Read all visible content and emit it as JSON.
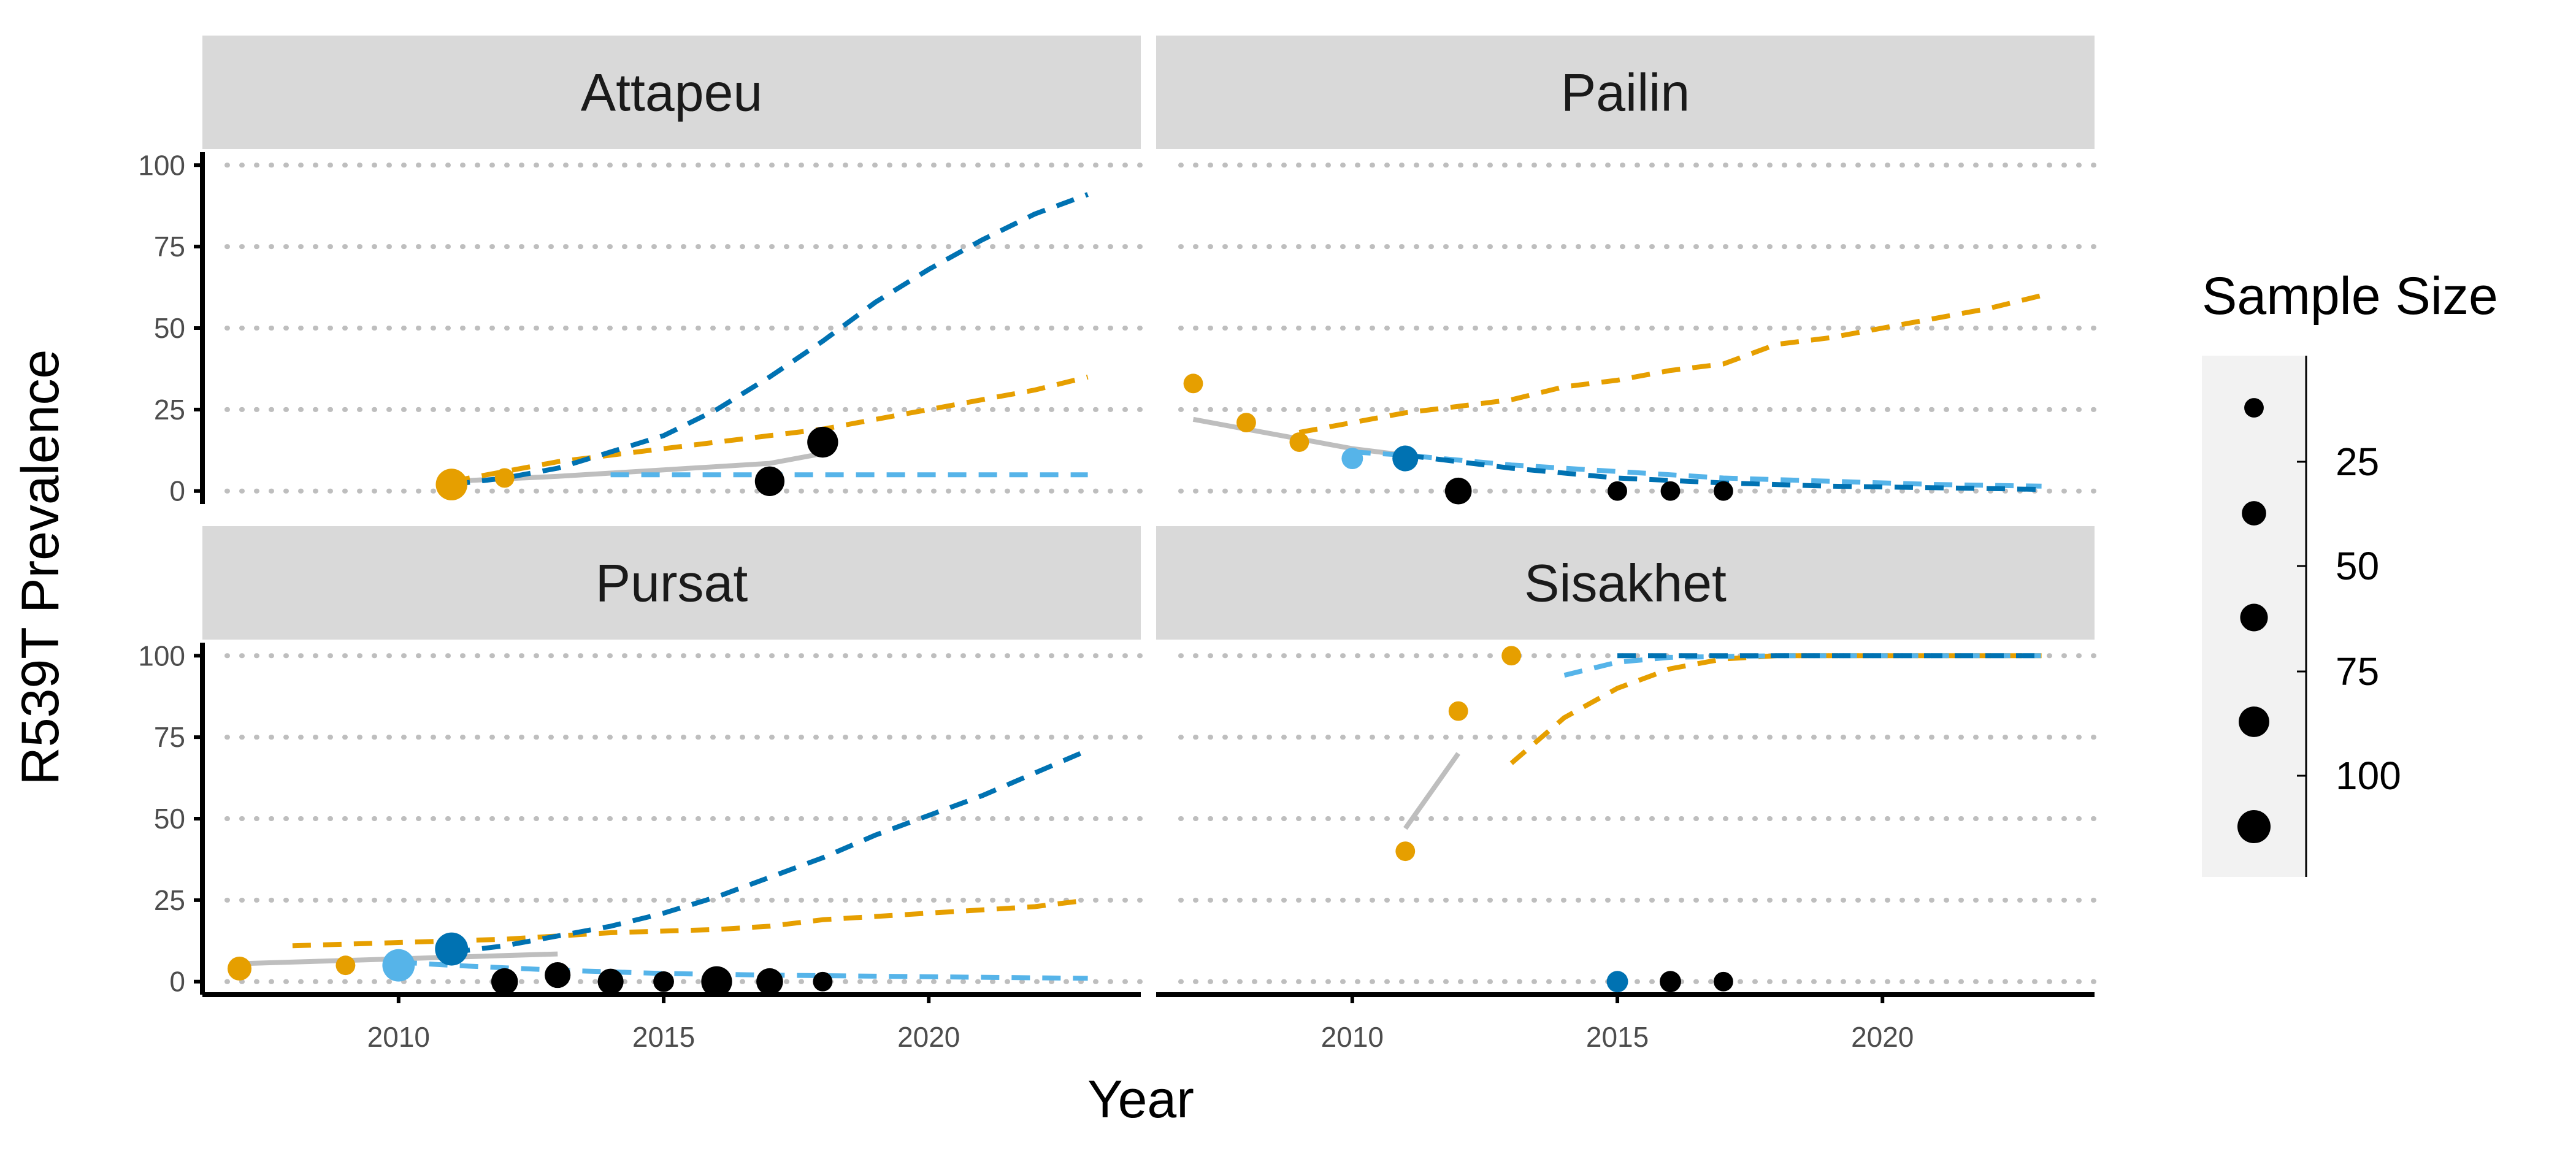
{
  "chart_data": {
    "type": "scatter",
    "ylabel": "R539T Prevalence",
    "xlabel": "Year",
    "xlim": [
      2006.3,
      2024
    ],
    "ylim": [
      -4,
      104
    ],
    "x_ticks": [
      2010,
      2015,
      2020
    ],
    "y_ticks": [
      0,
      25,
      50,
      75,
      100
    ],
    "grid": "horizontal dotted",
    "legend": {
      "title": "Sample Size",
      "position": "right",
      "entries": [
        {
          "label": "25",
          "size": 25
        },
        {
          "label": "50",
          "size": 50
        },
        {
          "label": "75",
          "size": 75
        },
        {
          "label": "100",
          "size": 100
        }
      ]
    },
    "colors": {
      "orange": "#E69F00",
      "sky_blue": "#56B4E9",
      "dark_blue": "#0072B2",
      "black": "#000000",
      "gray": "#BEBEBE"
    },
    "panels": [
      {
        "name": "Attapeu",
        "points": [
          {
            "x": 2011,
            "y": 2,
            "size": 105,
            "color": "orange"
          },
          {
            "x": 2012,
            "y": 4,
            "size": 40,
            "color": "orange"
          },
          {
            "x": 2017,
            "y": 3,
            "size": 92,
            "color": "black"
          },
          {
            "x": 2018,
            "y": 15,
            "size": 100,
            "color": "black"
          }
        ],
        "lines": [
          {
            "color": "gray",
            "dash": "solid",
            "points": [
              [
                2011,
                3
              ],
              [
                2013,
                4.5
              ],
              [
                2015,
                6.5
              ],
              [
                2017,
                8.5
              ],
              [
                2018,
                11.5
              ]
            ]
          },
          {
            "color": "orange",
            "dash": "dashed",
            "points": [
              [
                2011,
                3
              ],
              [
                2012,
                6
              ],
              [
                2013,
                9
              ],
              [
                2014,
                11
              ],
              [
                2015,
                13
              ],
              [
                2016,
                15
              ],
              [
                2017,
                17
              ],
              [
                2018,
                19
              ],
              [
                2019,
                22
              ],
              [
                2020,
                25
              ],
              [
                2021,
                28
              ],
              [
                2022,
                31
              ],
              [
                2023,
                35
              ]
            ]
          },
          {
            "color": "dark_blue",
            "dash": "dashed",
            "points": [
              [
                2011,
                2
              ],
              [
                2012,
                4
              ],
              [
                2013,
                7
              ],
              [
                2014,
                12
              ],
              [
                2015,
                17
              ],
              [
                2016,
                25
              ],
              [
                2017,
                35
              ],
              [
                2018,
                46
              ],
              [
                2019,
                58
              ],
              [
                2020,
                68
              ],
              [
                2021,
                77
              ],
              [
                2022,
                85
              ],
              [
                2023,
                91
              ]
            ]
          },
          {
            "color": "sky_blue",
            "dash": "dashed",
            "points": [
              [
                2014,
                5
              ],
              [
                2017,
                5
              ],
              [
                2020,
                5
              ],
              [
                2023,
                5
              ]
            ]
          }
        ]
      },
      {
        "name": "Pailin",
        "points": [
          {
            "x": 2007,
            "y": 33,
            "size": 40,
            "color": "orange"
          },
          {
            "x": 2008,
            "y": 21,
            "size": 40,
            "color": "orange"
          },
          {
            "x": 2009,
            "y": 15,
            "size": 40,
            "color": "orange"
          },
          {
            "x": 2010,
            "y": 10,
            "size": 48,
            "color": "sky_blue"
          },
          {
            "x": 2011,
            "y": 10,
            "size": 70,
            "color": "dark_blue"
          },
          {
            "x": 2012,
            "y": 0,
            "size": 75,
            "color": "black"
          },
          {
            "x": 2015,
            "y": 0,
            "size": 40,
            "color": "black"
          },
          {
            "x": 2016,
            "y": 0,
            "size": 40,
            "color": "black"
          },
          {
            "x": 2017,
            "y": 0,
            "size": 40,
            "color": "black"
          }
        ],
        "lines": [
          {
            "color": "gray",
            "dash": "solid",
            "points": [
              [
                2007,
                22
              ],
              [
                2008,
                19
              ],
              [
                2009,
                16
              ],
              [
                2010,
                13
              ],
              [
                2011,
                11
              ]
            ]
          },
          {
            "color": "orange",
            "dash": "dashed",
            "points": [
              [
                2009,
                18
              ],
              [
                2010,
                21
              ],
              [
                2011,
                24
              ],
              [
                2012,
                26
              ],
              [
                2013,
                28
              ],
              [
                2014,
                32
              ],
              [
                2015,
                34
              ],
              [
                2016,
                37
              ],
              [
                2017,
                39
              ],
              [
                2018,
                45
              ],
              [
                2019,
                47
              ],
              [
                2020,
                50
              ],
              [
                2021,
                53
              ],
              [
                2022,
                56
              ],
              [
                2023,
                60
              ]
            ]
          },
          {
            "color": "sky_blue",
            "dash": "dashed",
            "points": [
              [
                2010,
                12
              ],
              [
                2011,
                11
              ],
              [
                2013,
                8
              ],
              [
                2015,
                6
              ],
              [
                2017,
                4
              ],
              [
                2019,
                3
              ],
              [
                2021,
                2
              ],
              [
                2023,
                1.5
              ]
            ]
          },
          {
            "color": "dark_blue",
            "dash": "dashed",
            "points": [
              [
                2011,
                11
              ],
              [
                2013,
                7
              ],
              [
                2015,
                4
              ],
              [
                2017,
                2.5
              ],
              [
                2019,
                1.5
              ],
              [
                2021,
                1
              ],
              [
                2023,
                0.5
              ]
            ]
          }
        ]
      },
      {
        "name": "Pursat",
        "points": [
          {
            "x": 2007,
            "y": 4,
            "size": 60,
            "color": "orange"
          },
          {
            "x": 2009,
            "y": 5,
            "size": 40,
            "color": "orange"
          },
          {
            "x": 2010,
            "y": 5,
            "size": 110,
            "color": "sky_blue"
          },
          {
            "x": 2011,
            "y": 10,
            "size": 115,
            "color": "dark_blue"
          },
          {
            "x": 2012,
            "y": 0,
            "size": 75,
            "color": "black"
          },
          {
            "x": 2013,
            "y": 2,
            "size": 70,
            "color": "black"
          },
          {
            "x": 2014,
            "y": 0,
            "size": 70,
            "color": "black"
          },
          {
            "x": 2015,
            "y": 0,
            "size": 45,
            "color": "black"
          },
          {
            "x": 2016,
            "y": 0,
            "size": 100,
            "color": "black"
          },
          {
            "x": 2017,
            "y": 0,
            "size": 75,
            "color": "black"
          },
          {
            "x": 2018,
            "y": 0,
            "size": 40,
            "color": "black"
          }
        ],
        "lines": [
          {
            "color": "gray",
            "dash": "solid",
            "points": [
              [
                2007,
                5.5
              ],
              [
                2009,
                6.5
              ],
              [
                2011,
                7.5
              ],
              [
                2013,
                8.5
              ]
            ]
          },
          {
            "color": "orange",
            "dash": "dashed",
            "points": [
              [
                2008,
                11
              ],
              [
                2010,
                12
              ],
              [
                2012,
                13
              ],
              [
                2014,
                15
              ],
              [
                2016,
                16
              ],
              [
                2017,
                17
              ],
              [
                2018,
                19
              ],
              [
                2020,
                21
              ],
              [
                2022,
                23
              ],
              [
                2023,
                25
              ]
            ]
          },
          {
            "color": "dark_blue",
            "dash": "dashed",
            "points": [
              [
                2011,
                9
              ],
              [
                2012,
                11
              ],
              [
                2013,
                14
              ],
              [
                2014,
                17
              ],
              [
                2015,
                21
              ],
              [
                2016,
                26
              ],
              [
                2017,
                32
              ],
              [
                2018,
                38
              ],
              [
                2019,
                45
              ],
              [
                2020,
                51
              ],
              [
                2021,
                57
              ],
              [
                2022,
                64
              ],
              [
                2023,
                71
              ]
            ]
          },
          {
            "color": "sky_blue",
            "dash": "dashed",
            "points": [
              [
                2010,
                6
              ],
              [
                2011,
                5
              ],
              [
                2013,
                3.5
              ],
              [
                2015,
                2.5
              ],
              [
                2017,
                2
              ],
              [
                2020,
                1.5
              ],
              [
                2023,
                1
              ]
            ]
          }
        ]
      },
      {
        "name": "Sisakhet",
        "points": [
          {
            "x": 2011,
            "y": 40,
            "size": 40,
            "color": "orange"
          },
          {
            "x": 2012,
            "y": 83,
            "size": 40,
            "color": "orange"
          },
          {
            "x": 2013,
            "y": 100,
            "size": 40,
            "color": "orange"
          },
          {
            "x": 2015,
            "y": 0,
            "size": 48,
            "color": "dark_blue"
          },
          {
            "x": 2016,
            "y": 0,
            "size": 48,
            "color": "black"
          },
          {
            "x": 2017,
            "y": 0,
            "size": 40,
            "color": "black"
          }
        ],
        "lines": [
          {
            "color": "gray",
            "dash": "solid",
            "points": [
              [
                2011,
                47
              ],
              [
                2012,
                70
              ]
            ]
          },
          {
            "color": "orange",
            "dash": "dashed",
            "points": [
              [
                2013,
                67
              ],
              [
                2014,
                81
              ],
              [
                2015,
                90
              ],
              [
                2016,
                96
              ],
              [
                2017,
                99
              ],
              [
                2018,
                100
              ],
              [
                2020,
                100
              ],
              [
                2023,
                100
              ]
            ]
          },
          {
            "color": "sky_blue",
            "dash": "dashed",
            "points": [
              [
                2014,
                94
              ],
              [
                2015,
                98
              ],
              [
                2016,
                99.5
              ],
              [
                2018,
                100
              ],
              [
                2023,
                100
              ]
            ]
          },
          {
            "color": "dark_blue",
            "dash": "dashed",
            "points": [
              [
                2015,
                100
              ],
              [
                2017,
                100
              ],
              [
                2019,
                100
              ],
              [
                2021,
                100
              ],
              [
                2023,
                100
              ]
            ]
          }
        ]
      }
    ]
  }
}
